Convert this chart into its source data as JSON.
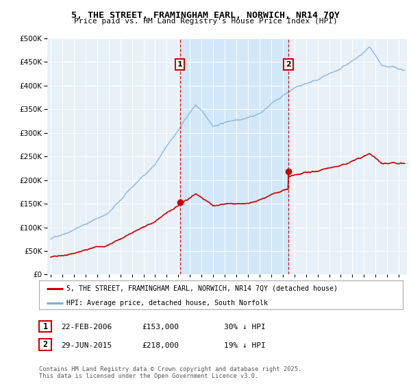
{
  "title": "5, THE STREET, FRAMINGHAM EARL, NORWICH, NR14 7QY",
  "subtitle": "Price paid vs. HM Land Registry's House Price Index (HPI)",
  "legend_line1": "5, THE STREET, FRAMINGHAM EARL, NORWICH, NR14 7QY (detached house)",
  "legend_line2": "HPI: Average price, detached house, South Norfolk",
  "transaction1_date": "22-FEB-2006",
  "transaction1_price": "£153,000",
  "transaction1_hpi": "30% ↓ HPI",
  "transaction2_date": "29-JUN-2015",
  "transaction2_price": "£218,000",
  "transaction2_hpi": "19% ↓ HPI",
  "footer": "Contains HM Land Registry data © Crown copyright and database right 2025.\nThis data is licensed under the Open Government Licence v3.0.",
  "red_color": "#cc0000",
  "blue_color": "#7bafd4",
  "vline_color": "#dd0000",
  "shade_color": "#d0e8f8",
  "ylim": [
    0,
    500000
  ],
  "yticks": [
    0,
    50000,
    100000,
    150000,
    200000,
    250000,
    300000,
    350000,
    400000,
    450000,
    500000
  ],
  "transaction1_x": 2006.13,
  "transaction2_x": 2015.49,
  "transaction1_y": 153000,
  "transaction2_y": 218000,
  "xmin": 1995,
  "xmax": 2025.5
}
